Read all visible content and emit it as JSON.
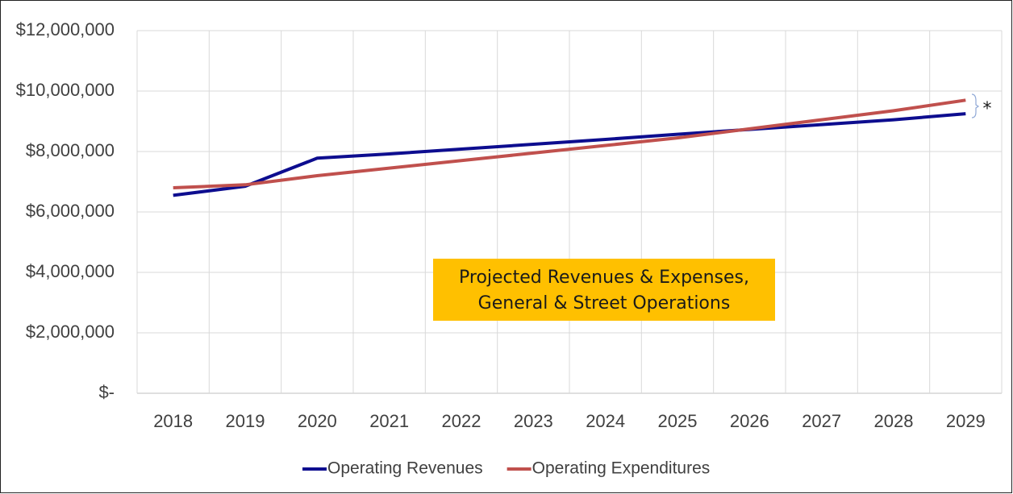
{
  "chart_data": {
    "type": "line",
    "categories": [
      "2018",
      "2019",
      "2020",
      "2021",
      "2022",
      "2023",
      "2024",
      "2025",
      "2026",
      "2027",
      "2028",
      "2029"
    ],
    "series": [
      {
        "name": "Operating Revenues",
        "color": "#0d0d8f",
        "values": [
          6550000,
          6850000,
          7780000,
          7920000,
          8080000,
          8240000,
          8400000,
          8570000,
          8730000,
          8890000,
          9050000,
          9250000
        ]
      },
      {
        "name": "Operating Expenditures",
        "color": "#c0504d",
        "values": [
          6800000,
          6900000,
          7200000,
          7450000,
          7700000,
          7950000,
          8200000,
          8450000,
          8750000,
          9050000,
          9350000,
          9700000
        ]
      }
    ],
    "ylim": [
      0,
      12000000
    ],
    "yticks": [
      {
        "value": 0,
        "label": "$-"
      },
      {
        "value": 2000000,
        "label": "$2,000,000"
      },
      {
        "value": 4000000,
        "label": "$4,000,000"
      },
      {
        "value": 6000000,
        "label": "$6,000,000"
      },
      {
        "value": 8000000,
        "label": "$8,000,000"
      },
      {
        "value": 10000000,
        "label": "$10,000,000"
      },
      {
        "value": 12000000,
        "label": "$12,000,000"
      }
    ],
    "grid": true,
    "legend": "bottom",
    "annotations": [
      "Projected Revenues & Expenses,",
      "General & Street Operations",
      "*"
    ]
  }
}
